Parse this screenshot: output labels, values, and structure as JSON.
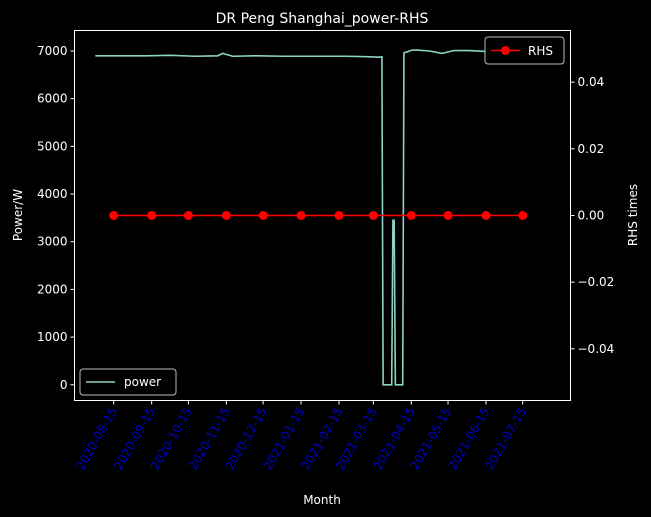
{
  "chart_data": {
    "type": "line",
    "title": "DR Peng Shanghai_power-RHS",
    "xlabel": "Month",
    "ylabel_left": "Power/W",
    "ylabel_right": "RHS times",
    "x_ticks": [
      "2020-08-15",
      "2020-09-15",
      "2020-10-15",
      "2020-11-15",
      "2020-12-15",
      "2021-01-15",
      "2021-02-15",
      "2021-03-15",
      "2021-04-15",
      "2021-05-15",
      "2021-06-15",
      "2021-07-15"
    ],
    "x_tick_color": "#0000cd",
    "xlim": [
      "2020-07-14",
      "2021-08-23"
    ],
    "y_left": {
      "ylim": [
        -330,
        7430
      ],
      "ticks": [
        0,
        1000,
        2000,
        3000,
        4000,
        5000,
        6000,
        7000
      ]
    },
    "y_right": {
      "ylim": [
        -0.0555,
        0.0555
      ],
      "ticks": [
        -0.04,
        -0.02,
        0.0,
        0.02,
        0.04
      ],
      "tick_labels": [
        "−0.04",
        "−0.02",
        "0.00",
        "0.02",
        "0.04"
      ]
    },
    "series": [
      {
        "name": "power",
        "axis": "left",
        "color": "#8dd3c7",
        "marker": "none",
        "x": [
          "2020-07-31",
          "2020-08-20",
          "2020-09-10",
          "2020-10-01",
          "2020-10-20",
          "2020-11-08",
          "2020-11-12",
          "2020-11-20",
          "2020-12-10",
          "2021-01-01",
          "2021-01-25",
          "2021-02-20",
          "2021-03-10",
          "2021-03-20",
          "2021-03-22",
          "2021-03-23",
          "2021-03-30",
          "2021-03-31",
          "2021-04-01",
          "2021-04-02",
          "2021-04-08",
          "2021-04-09",
          "2021-04-10",
          "2021-04-16",
          "2021-04-20",
          "2021-04-30",
          "2021-05-10",
          "2021-05-20",
          "2021-06-01",
          "2021-06-15",
          "2021-06-25",
          "2021-07-10",
          "2021-07-15"
        ],
        "values": [
          6900,
          6900,
          6900,
          6910,
          6890,
          6900,
          6950,
          6890,
          6900,
          6890,
          6890,
          6890,
          6880,
          6870,
          6880,
          0,
          0,
          3450,
          3450,
          0,
          0,
          6960,
          6970,
          7020,
          7020,
          7000,
          6950,
          7010,
          7010,
          6990,
          7060,
          7070,
          7060
        ]
      },
      {
        "name": "RHS",
        "axis": "right",
        "color": "#ff0000",
        "marker": "circle",
        "x": [
          "2020-08-15",
          "2020-09-15",
          "2020-10-15",
          "2020-11-15",
          "2020-12-15",
          "2021-01-15",
          "2021-02-15",
          "2021-03-15",
          "2021-04-15",
          "2021-05-15",
          "2021-06-15",
          "2021-07-15"
        ],
        "values": [
          0,
          0,
          0,
          0,
          0,
          0,
          0,
          0,
          0,
          0,
          0,
          0
        ]
      }
    ],
    "legends": [
      {
        "placement": "upper-right",
        "entries": [
          "RHS"
        ]
      },
      {
        "placement": "lower-left",
        "entries": [
          "power"
        ]
      }
    ],
    "grid": false
  }
}
